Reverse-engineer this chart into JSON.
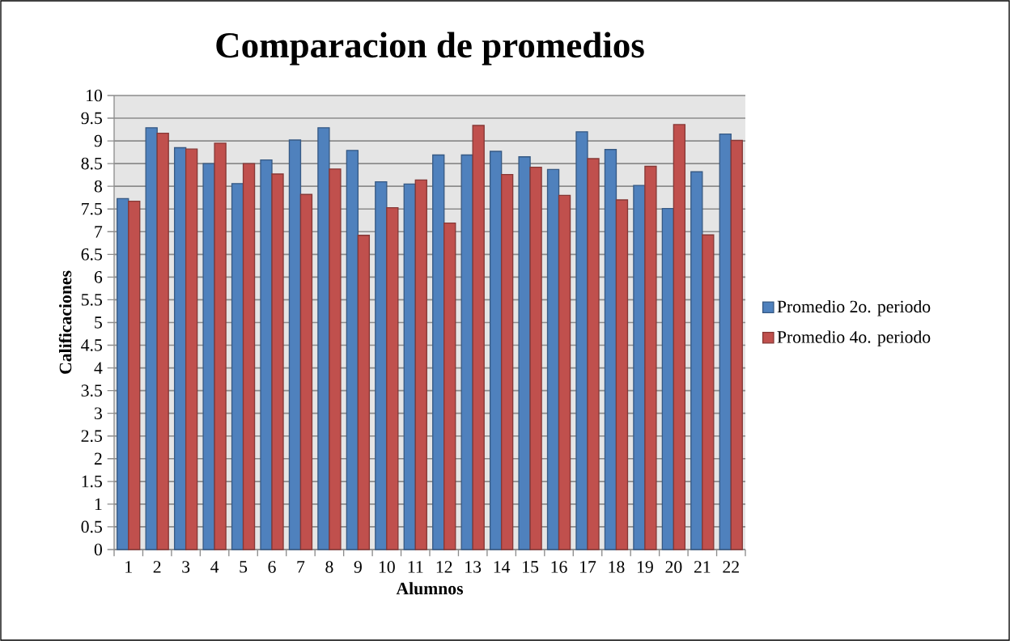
{
  "chart_data": {
    "type": "bar",
    "title": "Comparacion de promedios",
    "xlabel": "Alumnos",
    "ylabel": "Calificaciones",
    "categories": [
      "1",
      "2",
      "3",
      "4",
      "5",
      "6",
      "7",
      "8",
      "9",
      "10",
      "11",
      "12",
      "13",
      "14",
      "15",
      "16",
      "17",
      "18",
      "19",
      "20",
      "21",
      "22"
    ],
    "series": [
      {
        "name": "Promedio 2o. periodo",
        "color": "#4f81bd",
        "values": [
          7.73,
          9.29,
          8.85,
          8.5,
          8.06,
          8.58,
          9.02,
          9.29,
          8.79,
          8.1,
          8.05,
          8.69,
          8.69,
          8.77,
          8.65,
          8.37,
          9.2,
          8.81,
          8.02,
          7.51,
          8.32,
          9.15
        ]
      },
      {
        "name": "Promedio 4o. periodo",
        "color": "#c0504d",
        "values": [
          7.67,
          9.17,
          8.82,
          8.95,
          8.5,
          8.27,
          7.82,
          8.38,
          6.92,
          7.53,
          8.14,
          7.19,
          9.34,
          8.26,
          8.42,
          7.8,
          8.61,
          7.7,
          8.44,
          9.36,
          6.93,
          9.01
        ]
      }
    ],
    "ylim": [
      0,
      10
    ],
    "yticks": [
      0,
      0.5,
      1,
      1.5,
      2,
      2.5,
      3,
      3.5,
      4,
      4.5,
      5,
      5.5,
      6,
      6.5,
      7,
      7.5,
      8,
      8.5,
      9,
      9.5,
      10
    ],
    "grid": "y",
    "legend": "right"
  }
}
